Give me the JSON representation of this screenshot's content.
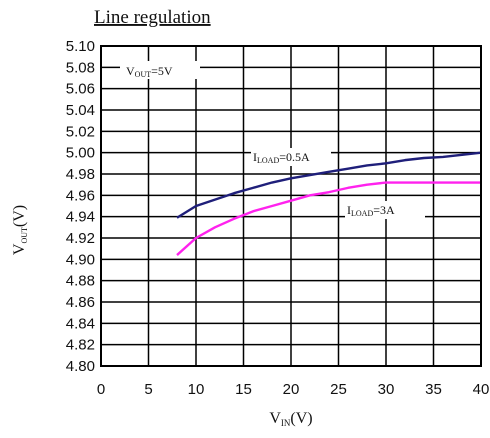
{
  "chart_data": {
    "type": "line",
    "title": "Line regulation",
    "xlabel": {
      "main": "V",
      "sub": "IN",
      "suffix": "(V)"
    },
    "ylabel": {
      "main": "V",
      "sub": "OUT",
      "suffix": "(V)"
    },
    "xlim": [
      0,
      40
    ],
    "ylim": [
      4.8,
      5.1
    ],
    "x_ticks": [
      "0",
      "5",
      "10",
      "15",
      "20",
      "25",
      "30",
      "35",
      "40"
    ],
    "y_ticks": [
      "5.10",
      "5.08",
      "5.06",
      "5.04",
      "5.02",
      "5.00",
      "4.98",
      "4.96",
      "4.94",
      "4.92",
      "4.90",
      "4.88",
      "4.86",
      "4.84",
      "4.82",
      "4.80"
    ],
    "grid": true,
    "annotation": {
      "main": "V",
      "sub": "OUT",
      "suffix": "=5V"
    },
    "series": [
      {
        "name": "I_LOAD=0.5A",
        "label": {
          "main": "I",
          "sub": "LOAD",
          "suffix": "=0.5A"
        },
        "color": "#1f1f7a",
        "x": [
          8,
          10,
          12,
          14,
          16,
          18,
          20,
          22,
          24,
          26,
          28,
          30,
          32,
          34,
          36,
          38,
          40
        ],
        "y": [
          4.939,
          4.95,
          4.956,
          4.962,
          4.967,
          4.972,
          4.976,
          4.979,
          4.982,
          4.985,
          4.988,
          4.99,
          4.993,
          4.995,
          4.996,
          4.998,
          5.0
        ]
      },
      {
        "name": "I_LOAD=3A",
        "label": {
          "main": "I",
          "sub": "LOAD",
          "suffix": "=3A"
        },
        "color": "#ff22ee",
        "x": [
          8,
          10,
          12,
          14,
          16,
          18,
          20,
          22,
          24,
          26,
          28,
          30,
          32,
          34,
          36,
          38,
          40
        ],
        "y": [
          4.904,
          4.92,
          4.93,
          4.938,
          4.945,
          4.95,
          4.955,
          4.96,
          4.963,
          4.967,
          4.97,
          4.972,
          4.972,
          4.972,
          4.972,
          4.972,
          4.972
        ]
      }
    ]
  }
}
